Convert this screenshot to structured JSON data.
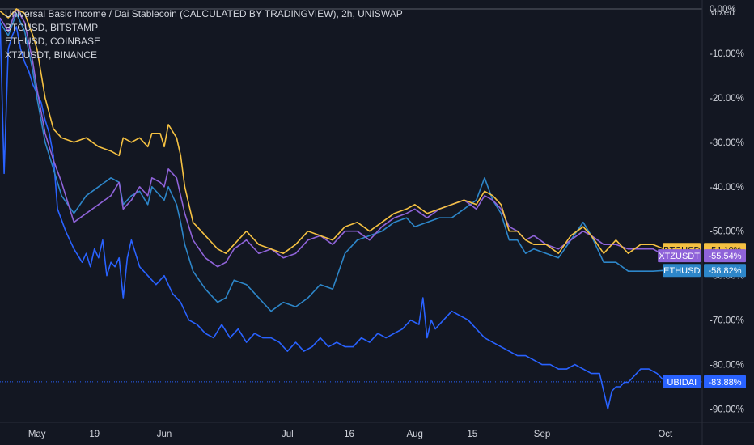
{
  "legend": {
    "main": "Universal Basic Income / Dai Stablecoin (CALCULATED BY TRADINGVIEW), 2h, UNISWAP",
    "series": [
      "BTCUSD, BITSTAMP",
      "ETHUSD, COINBASE",
      "XTZUSDT, BINANCE"
    ]
  },
  "scale_mode": "Mixed",
  "chart_data": {
    "type": "line",
    "ylabel": "",
    "xlabel": "",
    "y_unit": "percent change",
    "ylim": [
      -93,
      2
    ],
    "y_ticks": [
      0,
      -10,
      -20,
      -30,
      -40,
      -50,
      -60,
      -70,
      -80,
      -90
    ],
    "y_tick_labels": [
      "0.00%",
      "-10.00%",
      "-20.00%",
      "-30.00%",
      "-40.00%",
      "-50.00%",
      "-60.00%",
      "-70.00%",
      "-80.00%",
      "-90.00%"
    ],
    "x_ticks": [
      {
        "label": "May",
        "x": 5
      },
      {
        "label": "19",
        "x": 19
      },
      {
        "label": "Jun",
        "x": 36
      },
      {
        "label": "Jul",
        "x": 66
      },
      {
        "label": "16",
        "x": 81
      },
      {
        "label": "Aug",
        "x": 97
      },
      {
        "label": "15",
        "x": 111
      },
      {
        "label": "Sep",
        "x": 128
      },
      {
        "label": "Oct",
        "x": 158
      }
    ],
    "xlim": [
      -4,
      167
    ],
    "grid": false,
    "series": [
      {
        "name": "BTCUSD",
        "color": "#f5c142",
        "last_label": "-54.10%",
        "x": [
          -4,
          -2,
          0,
          2,
          4,
          5,
          7,
          9,
          11,
          14,
          17,
          20,
          23,
          25,
          26,
          28,
          30,
          32,
          33,
          35,
          36,
          37,
          39,
          40,
          41,
          43,
          46,
          49,
          51,
          53,
          56,
          59,
          62,
          65,
          68,
          71,
          74,
          77,
          80,
          83,
          86,
          89,
          92,
          95,
          97,
          100,
          103,
          106,
          109,
          112,
          114,
          116,
          118,
          120,
          122,
          124,
          126,
          129,
          132,
          135,
          138,
          140,
          143,
          146,
          149,
          152,
          155,
          158
        ],
        "y": [
          -0.5,
          -2,
          0,
          -1,
          -6,
          -9,
          -20,
          -27,
          -29,
          -30,
          -29,
          -31,
          -32,
          -33,
          -29,
          -30,
          -29,
          -31,
          -28,
          -28,
          -31,
          -26,
          -29,
          -33,
          -40,
          -48,
          -51,
          -54,
          -55,
          -53,
          -50,
          -53,
          -54,
          -55,
          -53,
          -50,
          -51,
          -52,
          -49,
          -48,
          -50,
          -48,
          -46,
          -45,
          -44,
          -46,
          -45,
          -44,
          -43,
          -44,
          -41,
          -42,
          -44,
          -50,
          -50,
          -52,
          -53,
          -53,
          -55,
          -51,
          -49,
          -51,
          -55,
          -52,
          -55,
          -53,
          -53,
          -54.1
        ]
      },
      {
        "name": "XTZUSDT",
        "color": "#8f63d9",
        "last_label": "-55.54%",
        "x": [
          -4,
          -2,
          0,
          2,
          4,
          5,
          7,
          9,
          11,
          14,
          17,
          20,
          23,
          25,
          26,
          28,
          30,
          32,
          33,
          35,
          36,
          37,
          39,
          40,
          41,
          43,
          46,
          49,
          51,
          53,
          56,
          59,
          62,
          65,
          68,
          71,
          74,
          77,
          80,
          83,
          86,
          89,
          92,
          95,
          97,
          100,
          103,
          106,
          109,
          112,
          114,
          116,
          118,
          120,
          122,
          124,
          126,
          129,
          132,
          135,
          138,
          140,
          143,
          146,
          149,
          152,
          155,
          158
        ],
        "y": [
          -2,
          -5,
          0,
          -3,
          -12,
          -18,
          -28,
          -34,
          -39,
          -48,
          -46,
          -44,
          -42,
          -39,
          -45,
          -43,
          -40,
          -42,
          -38,
          -39,
          -40,
          -36,
          -38,
          -42,
          -46,
          -52,
          -56,
          -58,
          -57,
          -54,
          -52,
          -55,
          -54,
          -56,
          -55,
          -52,
          -51,
          -53,
          -50,
          -50,
          -52,
          -49,
          -47,
          -46,
          -45,
          -47,
          -45,
          -44,
          -43,
          -45,
          -42,
          -43,
          -45,
          -49,
          -50,
          -52,
          -51,
          -53,
          -54,
          -52,
          -50,
          -51,
          -53,
          -53,
          -54,
          -54,
          -54,
          -55.54
        ]
      },
      {
        "name": "ETHUSD",
        "color": "#2d86c9",
        "last_label": "-58.82%",
        "x": [
          -4,
          -2,
          0,
          2,
          4,
          5,
          7,
          9,
          11,
          14,
          17,
          20,
          23,
          25,
          26,
          28,
          30,
          32,
          33,
          35,
          36,
          37,
          39,
          40,
          41,
          43,
          46,
          49,
          51,
          53,
          56,
          59,
          62,
          65,
          68,
          71,
          74,
          77,
          80,
          83,
          86,
          89,
          92,
          95,
          97,
          100,
          103,
          106,
          109,
          112,
          114,
          116,
          118,
          120,
          122,
          124,
          126,
          129,
          132,
          135,
          138,
          140,
          143,
          146,
          149,
          152,
          155,
          158
        ],
        "y": [
          -3,
          -6,
          -1,
          -5,
          -14,
          -20,
          -30,
          -36,
          -42,
          -46,
          -42,
          -40,
          -38,
          -39,
          -44,
          -42,
          -41,
          -44,
          -40,
          -42,
          -43,
          -40,
          -44,
          -48,
          -53,
          -59,
          -63,
          -66,
          -65,
          -61,
          -62,
          -65,
          -68,
          -66,
          -67,
          -65,
          -62,
          -63,
          -55,
          -52,
          -51,
          -50,
          -48,
          -47,
          -49,
          -48,
          -47,
          -47,
          -45,
          -43,
          -38,
          -43,
          -46,
          -52,
          -52,
          -55,
          -54,
          -55,
          -56,
          -52,
          -48,
          -51,
          -57,
          -57,
          -59,
          -59,
          -59,
          -58.82
        ]
      },
      {
        "name": "UBIDAI",
        "color": "#2962ff",
        "last_label": "-83.88%",
        "x": [
          -4,
          -3,
          -2,
          -1,
          0,
          1,
          2,
          3,
          4,
          5,
          6,
          7,
          8,
          9,
          10,
          12,
          14,
          16,
          17,
          18,
          19,
          20,
          21,
          22,
          23,
          24,
          25,
          26,
          27,
          28,
          30,
          32,
          34,
          36,
          38,
          40,
          42,
          44,
          46,
          48,
          50,
          52,
          54,
          56,
          58,
          60,
          62,
          64,
          66,
          68,
          70,
          72,
          74,
          76,
          78,
          80,
          82,
          84,
          86,
          88,
          90,
          92,
          94,
          96,
          98,
          99,
          100,
          101,
          102,
          103,
          104,
          106,
          108,
          110,
          112,
          114,
          116,
          118,
          120,
          122,
          124,
          126,
          128,
          130,
          132,
          134,
          136,
          138,
          140,
          142,
          144,
          145,
          146,
          147,
          148,
          149,
          150,
          152,
          154,
          156,
          158
        ],
        "y": [
          -2,
          -37,
          -9,
          -6,
          -4,
          -9,
          -12,
          -14,
          -17,
          -19,
          -21,
          -25,
          -28,
          -33,
          -45,
          -50,
          -54,
          -57,
          -55,
          -58,
          -54,
          -56,
          -52,
          -60,
          -57,
          -58,
          -56,
          -65,
          -56,
          -52,
          -58,
          -60,
          -62,
          -60,
          -64,
          -66,
          -70,
          -71,
          -73,
          -74,
          -71,
          -74,
          -72,
          -75,
          -73,
          -74,
          -74,
          -75,
          -77,
          -75,
          -77,
          -76,
          -74,
          -76,
          -75,
          -76,
          -76,
          -74,
          -75,
          -73,
          -74,
          -73,
          -72,
          -70,
          -71,
          -65,
          -74,
          -70,
          -72,
          -71,
          -70,
          -68,
          -69,
          -70,
          -72,
          -74,
          -75,
          -76,
          -77,
          -78,
          -78,
          -79,
          -80,
          -80,
          -81,
          -81,
          -80,
          -81,
          -82,
          -82,
          -90,
          -86,
          -85,
          -85,
          -84,
          -84,
          -83,
          -81,
          -81,
          -82,
          -83.88
        ]
      }
    ]
  }
}
